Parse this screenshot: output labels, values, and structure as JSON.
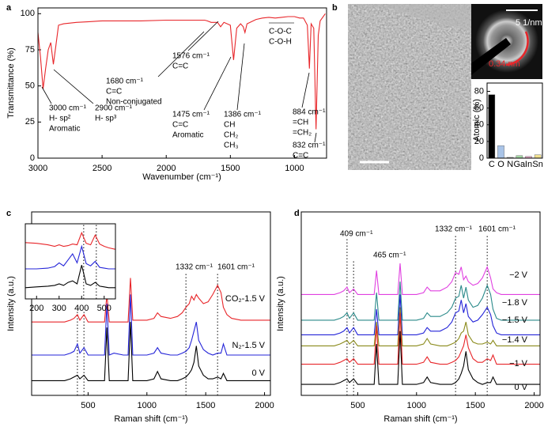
{
  "chart_data": [
    {
      "type": "line",
      "panel": "a",
      "xlabel": "Wavenumber (cm⁻¹)",
      "ylabel": "Transmittance (%)",
      "xlim": [
        3000,
        750
      ],
      "ylim": [
        0,
        104
      ],
      "xticks": [
        3000,
        2500,
        2000,
        1500,
        1000
      ],
      "yticks": [
        0,
        25,
        50,
        75,
        100
      ],
      "x": [
        3000,
        2980,
        2960,
        2940,
        2920,
        2900,
        2880,
        2860,
        2840,
        2800,
        2700,
        2600,
        2500,
        2400,
        2200,
        2000,
        1800,
        1700,
        1680,
        1650,
        1600,
        1576,
        1550,
        1500,
        1475,
        1450,
        1420,
        1400,
        1386,
        1370,
        1300,
        1250,
        1200,
        1150,
        1100,
        1050,
        1000,
        960,
        930,
        900,
        884,
        870,
        850,
        832,
        815,
        800,
        760
      ],
      "series": [
        {
          "color": "#e8262a",
          "values": [
            87,
            70,
            48,
            62,
            75,
            80,
            65,
            78,
            92,
            93,
            94,
            94.5,
            95,
            95,
            95,
            95.5,
            95.5,
            95.5,
            95,
            94,
            94,
            91,
            94,
            92,
            68,
            90,
            93,
            91,
            87,
            93,
            96,
            97,
            97.5,
            97,
            97.5,
            98,
            98,
            97,
            97,
            92,
            62,
            93,
            90,
            20,
            85,
            95,
            100
          ]
        }
      ],
      "annotations": [
        {
          "lines": [
            "3000 cm⁻¹",
            "H- sp²",
            "Aromatic"
          ]
        },
        {
          "lines": [
            "2900 cm⁻¹",
            "H- sp³"
          ]
        },
        {
          "lines": [
            "1680 cm⁻¹",
            "C=C",
            "Non-conjugated"
          ]
        },
        {
          "lines": [
            "1576 cm⁻¹",
            "C=C"
          ]
        },
        {
          "lines": [
            "1475 cm⁻¹",
            "C=C",
            "Aromatic"
          ]
        },
        {
          "lines": [
            "1386 cm⁻¹",
            "CH",
            "CH₂",
            "CH₃"
          ]
        },
        {
          "lines": [
            "C-O-C",
            "C-O-H"
          ]
        },
        {
          "lines": [
            "884 cm⁻¹",
            "=CH",
            "=CH₂"
          ]
        },
        {
          "lines": [
            "832 cm⁻¹",
            "C=C"
          ]
        }
      ]
    },
    {
      "type": "bar",
      "panel": "b",
      "ylabel": "Atomic (%)",
      "image_labels": [
        "5 1/nm",
        "0.34 nm"
      ],
      "categories": [
        "C",
        "O",
        "N",
        "Ga",
        "In",
        "Sn"
      ],
      "values": [
        76,
        15,
        1,
        3,
        2,
        4
      ],
      "colors": [
        "#000000",
        "#a9c4e8",
        "#b0b0b0",
        "#a8dba8",
        "#e8a8c8",
        "#f0e090"
      ],
      "ylim": [
        0,
        90
      ],
      "yticks": [
        0,
        20,
        40,
        60,
        80
      ]
    },
    {
      "type": "line",
      "panel": "c",
      "xlabel": "Raman shift (cm⁻¹)",
      "ylabel": "Intensity (a.u.)",
      "xlim": [
        20,
        2050
      ],
      "ylim": [
        0,
        100
      ],
      "xticks": [
        500,
        1000,
        1500,
        2000
      ],
      "vlines": [
        409,
        465,
        1332,
        1601
      ],
      "x": [
        20,
        200,
        300,
        350,
        380,
        409,
        430,
        465,
        500,
        550,
        600,
        640,
        660,
        680,
        720,
        800,
        840,
        860,
        880,
        950,
        1000,
        1060,
        1090,
        1120,
        1200,
        1260,
        1300,
        1332,
        1360,
        1380,
        1400,
        1420,
        1440,
        1480,
        1520,
        1560,
        1601,
        1630,
        1650,
        1680,
        1720,
        1800,
        1900,
        2000,
        2050
      ],
      "series": [
        {
          "name": "CO₂-1.5 V",
          "color": "#e8262a",
          "values": [
            40,
            40,
            40,
            41,
            42,
            44,
            41,
            44,
            40,
            40,
            40,
            40,
            55,
            40,
            40,
            40,
            40,
            64,
            41,
            41,
            41,
            42,
            45,
            43,
            42,
            43,
            45,
            48,
            50,
            54,
            52,
            55,
            53,
            50,
            51,
            55,
            60,
            56,
            48,
            44,
            42,
            41,
            41,
            41,
            41
          ]
        },
        {
          "name": "N₂-1.5 V",
          "color": "#2424d8",
          "values": [
            22,
            22,
            22,
            23,
            24,
            28,
            23,
            26,
            22,
            22,
            22,
            22,
            50,
            22,
            23,
            22,
            22,
            55,
            22,
            22,
            22,
            23,
            26,
            23,
            22,
            22,
            23,
            24,
            26,
            30,
            35,
            40,
            30,
            25,
            23,
            22,
            23,
            23,
            28,
            22,
            22,
            22,
            22,
            22,
            22
          ]
        },
        {
          "name": "0 V",
          "color": "#000000",
          "values": [
            8,
            8,
            8,
            9,
            10,
            11,
            9,
            11,
            8,
            8,
            8,
            8,
            37,
            8,
            8,
            8,
            8,
            40,
            8,
            8,
            8,
            9,
            13,
            9,
            8,
            8,
            9,
            10,
            12,
            14,
            18,
            27,
            16,
            11,
            9,
            9,
            10,
            9,
            12,
            8,
            8,
            8,
            8,
            8,
            8
          ]
        }
      ],
      "annotations": [
        {
          "lines": [
            "1332 cm⁻¹"
          ]
        },
        {
          "lines": [
            "1601 cm⁻¹"
          ]
        }
      ]
    },
    {
      "type": "line",
      "xlim": [
        150,
        550
      ],
      "ylim": [
        0,
        100
      ],
      "xticks": [
        200,
        300,
        400,
        500
      ],
      "vlines": [
        409,
        465
      ],
      "x": [
        150,
        200,
        250,
        280,
        300,
        320,
        340,
        360,
        380,
        400,
        420,
        440,
        460,
        480,
        500,
        520,
        550
      ],
      "series": [
        {
          "color": "#e8262a",
          "values": [
            75,
            74,
            72,
            70,
            72,
            70,
            71,
            73,
            72,
            88,
            74,
            72,
            85,
            73,
            70,
            68,
            66
          ]
        },
        {
          "color": "#2424d8",
          "values": [
            40,
            40,
            41,
            43,
            48,
            44,
            52,
            60,
            48,
            70,
            47,
            44,
            50,
            42,
            41,
            40,
            40
          ]
        },
        {
          "color": "#000000",
          "values": [
            15,
            16,
            17,
            18,
            20,
            18,
            22,
            24,
            20,
            45,
            20,
            18,
            22,
            17,
            16,
            15,
            15
          ]
        }
      ]
    },
    {
      "type": "line",
      "panel": "d",
      "xlabel": "Raman shift (cm⁻¹)",
      "ylabel": "Intensity (a.u.)",
      "xlim": [
        20,
        2050
      ],
      "ylim": [
        0,
        100
      ],
      "xticks": [
        500,
        1000,
        1500,
        2000
      ],
      "vlines": [
        409,
        465,
        1332,
        1601
      ],
      "x": [
        20,
        200,
        300,
        350,
        380,
        409,
        430,
        465,
        500,
        550,
        600,
        640,
        660,
        680,
        720,
        800,
        840,
        860,
        880,
        950,
        1000,
        1060,
        1090,
        1120,
        1200,
        1260,
        1300,
        1332,
        1360,
        1380,
        1400,
        1420,
        1440,
        1480,
        1520,
        1560,
        1601,
        1630,
        1650,
        1680,
        1720,
        1800,
        1900,
        2000,
        2050
      ],
      "series": [
        {
          "name": "−2 V",
          "color": "#e040e0",
          "values": [
            55,
            55,
            55,
            56,
            57,
            59,
            56,
            58,
            55,
            55,
            55,
            55,
            68,
            55,
            55,
            55,
            55,
            72,
            55,
            55,
            55,
            56,
            59,
            57,
            57,
            59,
            62,
            67,
            66,
            70,
            63,
            65,
            62,
            60,
            61,
            64,
            70,
            64,
            58,
            56,
            55,
            55,
            55,
            55,
            55
          ]
        },
        {
          "name": "−1.8 V",
          "color": "#2a8a8a",
          "values": [
            41,
            41,
            41,
            42,
            43,
            45,
            42,
            45,
            41,
            41,
            41,
            41,
            56,
            41,
            41,
            41,
            41,
            62,
            41,
            41,
            41,
            42,
            45,
            43,
            43,
            45,
            48,
            53,
            54,
            60,
            53,
            59,
            52,
            48,
            49,
            53,
            60,
            55,
            47,
            42,
            41,
            41,
            41,
            41,
            41
          ]
        },
        {
          "name": "−1.5 V",
          "color": "#2424d8",
          "values": [
            33,
            33,
            33,
            34,
            35,
            37,
            34,
            37,
            33,
            33,
            33,
            33,
            47,
            33,
            33,
            33,
            33,
            55,
            33,
            33,
            33,
            34,
            37,
            35,
            35,
            37,
            40,
            45,
            46,
            52,
            45,
            50,
            43,
            40,
            41,
            44,
            48,
            44,
            38,
            34,
            33,
            33,
            33,
            33,
            33
          ]
        },
        {
          "name": "−1.4 V",
          "color": "#8a8a1a",
          "values": [
            27,
            27,
            27,
            28,
            29,
            30,
            28,
            30,
            27,
            27,
            27,
            27,
            40,
            27,
            27,
            27,
            27,
            48,
            27,
            27,
            27,
            28,
            31,
            28,
            27,
            27,
            28,
            29,
            31,
            34,
            35,
            40,
            33,
            29,
            28,
            28,
            29,
            28,
            30,
            27,
            27,
            27,
            27,
            27,
            27
          ]
        },
        {
          "name": "−1 V",
          "color": "#e8262a",
          "values": [
            17,
            17,
            17,
            18,
            19,
            20,
            18,
            20,
            17,
            17,
            17,
            17,
            38,
            17,
            17,
            17,
            17,
            45,
            17,
            17,
            17,
            18,
            21,
            18,
            17,
            17,
            18,
            19,
            21,
            24,
            27,
            33,
            26,
            20,
            18,
            18,
            20,
            19,
            22,
            17,
            17,
            17,
            17,
            17,
            17
          ]
        },
        {
          "name": "0 V",
          "color": "#000000",
          "values": [
            6,
            6,
            6,
            7,
            8,
            9,
            7,
            9,
            6,
            6,
            6,
            6,
            28,
            6,
            6,
            6,
            6,
            35,
            6,
            6,
            6,
            7,
            10,
            7,
            6,
            6,
            6,
            7,
            9,
            12,
            16,
            24,
            14,
            9,
            7,
            6,
            7,
            7,
            10,
            6,
            6,
            6,
            6,
            6,
            6
          ]
        }
      ],
      "annotations": [
        {
          "lines": [
            "409 cm⁻¹"
          ]
        },
        {
          "lines": [
            "465 cm⁻¹"
          ]
        },
        {
          "lines": [
            "1332 cm⁻¹"
          ]
        },
        {
          "lines": [
            "1601 cm⁻¹"
          ]
        }
      ]
    }
  ]
}
